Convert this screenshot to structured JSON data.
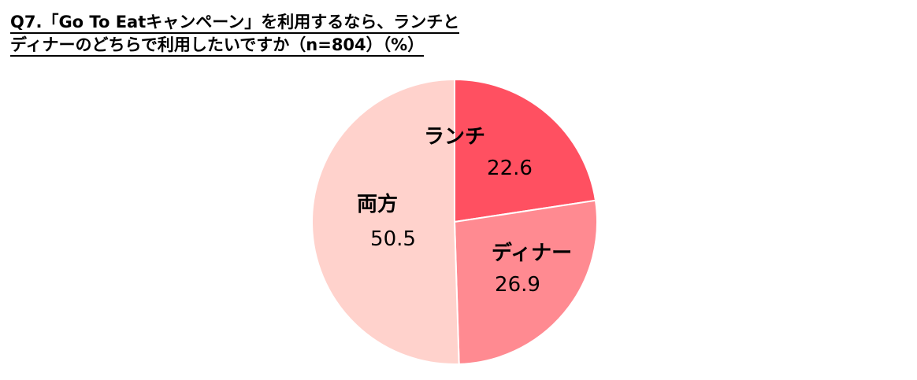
{
  "title": {
    "line1": "Q7.「Go To Eatキャンペーン」を利用するなら、ランチと",
    "line2": "ディナーのどちらで利用したいですか（n=804）（%）"
  },
  "chart_data": {
    "type": "pie",
    "title": "Q7.「Go To Eatキャンペーン」を利用するなら、ランチとディナーのどちらで利用したいですか（n=804）（%）",
    "unit": "%",
    "start_angle_deg": 0,
    "direction": "clockwise",
    "slices": [
      {
        "label": "ランチ",
        "value": 22.6,
        "value_label": "22.6",
        "color": "#ff5061"
      },
      {
        "label": "ディナー",
        "value": 26.9,
        "value_label": "26.9",
        "color": "#ff8a91"
      },
      {
        "label": "両方",
        "value": 50.5,
        "value_label": "50.5",
        "color": "#ffd2cc"
      }
    ],
    "legend": "none",
    "border_color": "#ffffff"
  }
}
